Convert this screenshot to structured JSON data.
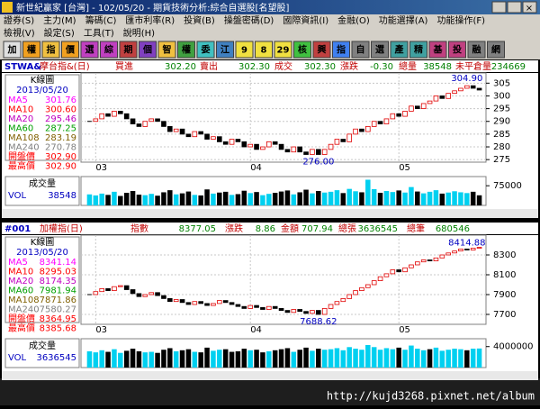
{
  "window": {
    "title": "新世紀贏家 [台灣] - 102/05/20 - 期貨技術分析:綜合自選股[名望股]"
  },
  "menu": [
    [
      "證券(S)",
      "主力(M)",
      "籌碼(C)",
      "匯市利率(R)",
      "投資(B)",
      "操盤密碼(D)",
      "國際資訊(I)",
      "金融(O)",
      "功能選擇(A)",
      "功能操作(F)"
    ],
    [
      "檢視(V)",
      "設定(S)",
      "工具(T)",
      "說明(H)"
    ]
  ],
  "toolbar": [
    "加",
    "權",
    "指",
    "價",
    "選",
    "綜",
    "期",
    "個",
    "智",
    "權",
    "委",
    "江",
    "9",
    "8",
    "29",
    "核",
    "興",
    "指",
    "自",
    "選",
    "產",
    "精",
    "基",
    "投",
    "融",
    "網"
  ],
  "panels": [
    {
      "symbol": "STWA&",
      "name": "摩台指&(日)",
      "quote": [
        {
          "label": "買進",
          "value": "302.20"
        },
        {
          "label": "賣出",
          "value": "302.30"
        },
        {
          "label": "成交",
          "value": "302.30"
        },
        {
          "label": "漲跌",
          "value": "-0.30"
        },
        {
          "label": "總量",
          "value": "38548"
        },
        {
          "label": "未平倉量",
          "value": "234669"
        }
      ],
      "info_title": "K線圖",
      "date": "2013/05/20",
      "indicators": [
        {
          "label": "MA5",
          "value": "301.76",
          "color": "#ff00ff"
        },
        {
          "label": "MA10",
          "value": "300.60",
          "color": "#ff0000"
        },
        {
          "label": "MA20",
          "value": "295.46",
          "color": "#c000c0"
        },
        {
          "label": "MA60",
          "value": "287.25",
          "color": "#00a000"
        },
        {
          "label": "MA108",
          "value": "283.19",
          "color": "#806000"
        },
        {
          "label": "MA240",
          "value": "270.78",
          "color": "#808080"
        },
        {
          "label": "開盤價",
          "value": "302.90",
          "color": "#ff0000"
        },
        {
          "label": "最高價",
          "value": "302.90",
          "color": "#ff0000"
        }
      ],
      "chart": {
        "type": "candlestick",
        "x": [
          null,
          "03",
          null,
          null,
          null,
          null,
          null,
          null,
          null,
          null,
          null,
          null,
          null,
          null,
          null,
          null,
          null,
          null,
          null,
          null,
          null,
          null,
          null,
          null,
          null,
          null,
          "04",
          null,
          null,
          null,
          null,
          null,
          null,
          null,
          null,
          null,
          null,
          null,
          null,
          null,
          null,
          null,
          null,
          null,
          null,
          null,
          null,
          null,
          null,
          null,
          "05",
          null,
          null,
          null,
          null,
          null,
          null,
          null,
          null,
          null,
          null,
          null,
          null,
          null
        ],
        "closes": [
          290,
          291,
          293,
          292,
          294,
          293,
          291,
          289,
          288,
          290,
          291,
          290,
          288,
          286,
          287,
          285,
          284,
          286,
          285,
          283,
          284,
          282,
          281,
          283,
          282,
          280,
          281,
          279,
          280,
          282,
          281,
          279,
          278,
          280,
          278,
          277,
          279,
          277,
          279,
          281,
          283,
          282,
          285,
          287,
          286,
          288,
          290,
          289,
          291,
          293,
          292,
          294,
          296,
          295,
          297,
          298,
          300,
          299,
          301,
          302,
          303,
          304,
          303,
          302.3
        ],
        "ylim": [
          274,
          309
        ],
        "yticks": [
          305,
          300,
          295,
          290,
          285,
          280,
          275
        ],
        "high_label": "304.90",
        "low_label": "276.00",
        "high_index": 61,
        "low_index": 37
      },
      "volume": {
        "title": "成交量",
        "label": "VOL",
        "value": "38548",
        "values": [
          42000,
          38000,
          45000,
          40000,
          52000,
          36000,
          48000,
          55000,
          41000,
          39000,
          44000,
          37000,
          50000,
          58000,
          42000,
          46000,
          53000,
          40000,
          38000,
          61000,
          45000,
          49000,
          52000,
          40000,
          43000,
          56000,
          47000,
          51000,
          39000,
          44000,
          48000,
          53000,
          57000,
          42000,
          50000,
          60000,
          46000,
          55000,
          49000,
          52000,
          58000,
          47000,
          63000,
          54000,
          50000,
          98000,
          62000,
          48000,
          55000,
          51000,
          57000,
          49000,
          70000,
          53000,
          46000,
          52000,
          58000,
          45000,
          49000,
          54000,
          50000,
          47000,
          52000,
          38548
        ],
        "ylim": [
          0,
          110000
        ],
        "yticks": [
          75000
        ]
      }
    },
    {
      "symbol": "#001",
      "name": "加權指(日)",
      "quote": [
        {
          "label": "指數",
          "value": "8377.05"
        },
        {
          "label": "漲跌",
          "value": "8.86"
        },
        {
          "label": "金額",
          "value": "707.94"
        },
        {
          "label": "總張",
          "value": "3636545"
        },
        {
          "label": "總筆",
          "value": "680546"
        }
      ],
      "info_title": "K線圖",
      "date": "2013/05/20",
      "indicators": [
        {
          "label": "MA5",
          "value": "8341.14",
          "color": "#ff00ff"
        },
        {
          "label": "MA10",
          "value": "8295.03",
          "color": "#ff0000"
        },
        {
          "label": "MA20",
          "value": "8174.35",
          "color": "#c000c0"
        },
        {
          "label": "MA60",
          "value": "7981.94",
          "color": "#00a000"
        },
        {
          "label": "MA108",
          "value": "7871.86",
          "color": "#806000"
        },
        {
          "label": "MA240",
          "value": "7580.27",
          "color": "#808080"
        },
        {
          "label": "開盤價",
          "value": "8364.95",
          "color": "#ff0000"
        },
        {
          "label": "最高價",
          "value": "8385.68",
          "color": "#ff0000"
        }
      ],
      "chart": {
        "type": "candlestick",
        "x": [
          null,
          "03",
          null,
          null,
          null,
          null,
          null,
          null,
          null,
          null,
          null,
          null,
          null,
          null,
          null,
          null,
          null,
          null,
          null,
          null,
          null,
          null,
          null,
          null,
          null,
          null,
          "04",
          null,
          null,
          null,
          null,
          null,
          null,
          null,
          null,
          null,
          null,
          null,
          null,
          null,
          null,
          null,
          null,
          null,
          null,
          null,
          null,
          null,
          null,
          null,
          "05",
          null,
          null,
          null,
          null,
          null,
          null,
          null,
          null,
          null,
          null,
          null,
          null,
          null
        ],
        "closes": [
          7900,
          7930,
          7960,
          7940,
          7980,
          7990,
          7950,
          7910,
          7880,
          7900,
          7920,
          7890,
          7860,
          7830,
          7850,
          7820,
          7800,
          7830,
          7810,
          7790,
          7810,
          7840,
          7820,
          7800,
          7780,
          7760,
          7790,
          7770,
          7750,
          7780,
          7760,
          7740,
          7720,
          7750,
          7730,
          7710,
          7740,
          7700,
          7760,
          7800,
          7830,
          7860,
          7900,
          7940,
          7970,
          8000,
          8040,
          8080,
          8110,
          8150,
          8130,
          8170,
          8200,
          8230,
          8250,
          8240,
          8270,
          8300,
          8320,
          8340,
          8360,
          8350,
          8368,
          8377.05
        ],
        "ylim": [
          7600,
          8500
        ],
        "yticks": [
          8300,
          8100,
          7900,
          7700
        ],
        "high_label": "8414.88",
        "low_label": "7688.62",
        "high_index": 61,
        "low_index": 37
      },
      "volume": {
        "title": "成交量",
        "label": "VOL",
        "value": "3636545",
        "values": [
          3100000,
          2900000,
          3300000,
          3000000,
          3500000,
          2800000,
          3200000,
          3600000,
          3100000,
          2900000,
          3000000,
          2800000,
          3400000,
          3700000,
          3100000,
          3300000,
          3500000,
          3000000,
          2900000,
          3800000,
          3200000,
          3400000,
          3500000,
          3000000,
          3100000,
          3600000,
          3300000,
          3400000,
          2900000,
          3100000,
          3300000,
          3500000,
          3700000,
          3000000,
          3400000,
          3800000,
          3200000,
          3600000,
          3400000,
          3500000,
          3700000,
          3300000,
          3900000,
          3600000,
          3400000,
          4300000,
          3900000,
          3400000,
          3700000,
          3500000,
          3800000,
          3400000,
          4200000,
          3600000,
          3300000,
          3500000,
          3800000,
          3200000,
          3400000,
          3600000,
          3500000,
          3300000,
          3600000,
          3636545
        ],
        "ylim": [
          0,
          5500000
        ],
        "yticks": [
          4000000
        ]
      }
    }
  ],
  "status": "http://kujd3268.pixnet.net/album"
}
